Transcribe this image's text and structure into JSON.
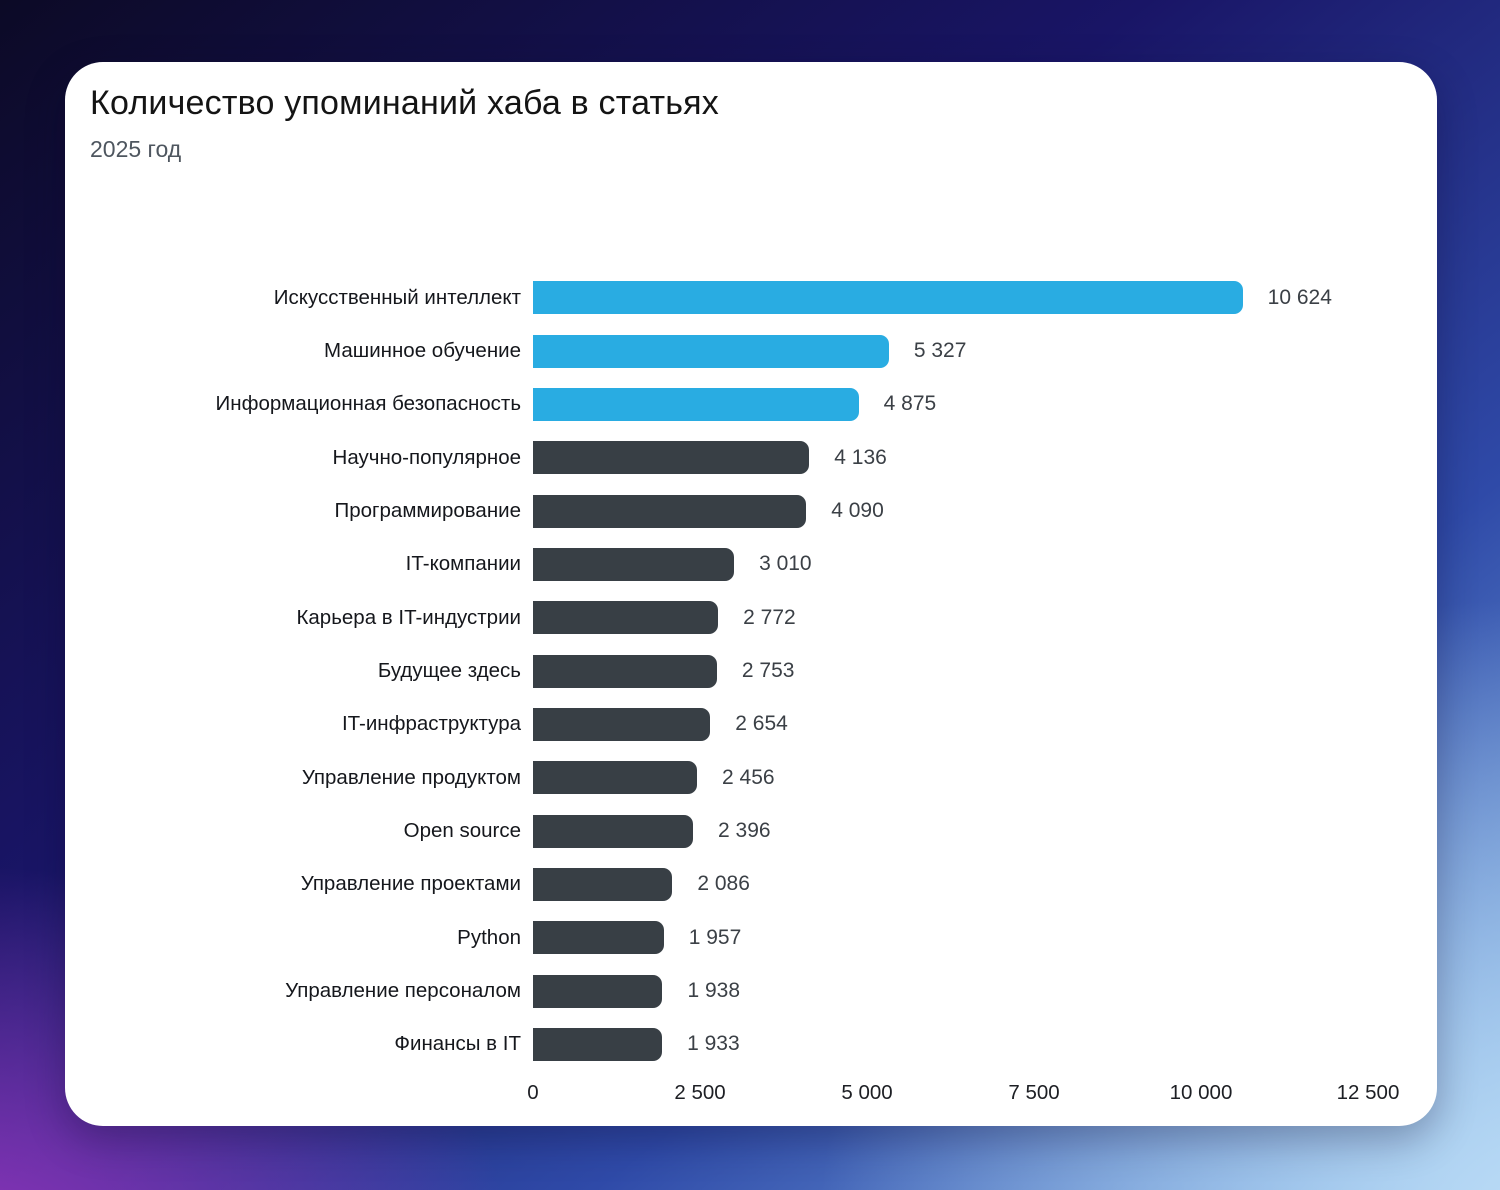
{
  "header": {
    "title": "Количество упоминаний хаба в статьях",
    "subtitle": "2025 год"
  },
  "chart_data": {
    "type": "bar",
    "orientation": "horizontal",
    "title": "Количество упоминаний хаба в статьях",
    "subtitle": "2025 год",
    "categories": [
      "Искусственный интеллект",
      "Машинное обучение",
      "Информационная безопасность",
      "Научно-популярное",
      "Программирование",
      "IT-компании",
      "Карьера в IT-индустрии",
      "Будущее здесь",
      "IT-инфраструктура",
      "Управление продуктом",
      "Open source",
      "Управление проектами",
      "Python",
      "Управление персоналом",
      "Финансы в IT"
    ],
    "values": [
      10624,
      5327,
      4875,
      4136,
      4090,
      3010,
      2772,
      2753,
      2654,
      2456,
      2396,
      2086,
      1957,
      1938,
      1933
    ],
    "value_labels": [
      "10 624",
      "5 327",
      "4 875",
      "4 136",
      "4 090",
      "3 010",
      "2 772",
      "2 753",
      "2 654",
      "2 456",
      "2 396",
      "2 086",
      "1 957",
      "1 938",
      "1 933"
    ],
    "xlim": [
      0,
      12500
    ],
    "x_ticks": [
      0,
      2500,
      5000,
      7500,
      10000,
      12500
    ],
    "x_tick_labels": [
      "0",
      "2 500",
      "5 000",
      "7 500",
      "10 000",
      "12 500"
    ],
    "grid": false,
    "legend": null,
    "highlighted_bars": 3,
    "colors": {
      "highlight": "#29ACE2",
      "default": "#383F45",
      "card_background": "#FFFFFF",
      "title_text": "#141414",
      "subtitle_text": "#4E565F",
      "value_text": "#3B4046"
    }
  }
}
